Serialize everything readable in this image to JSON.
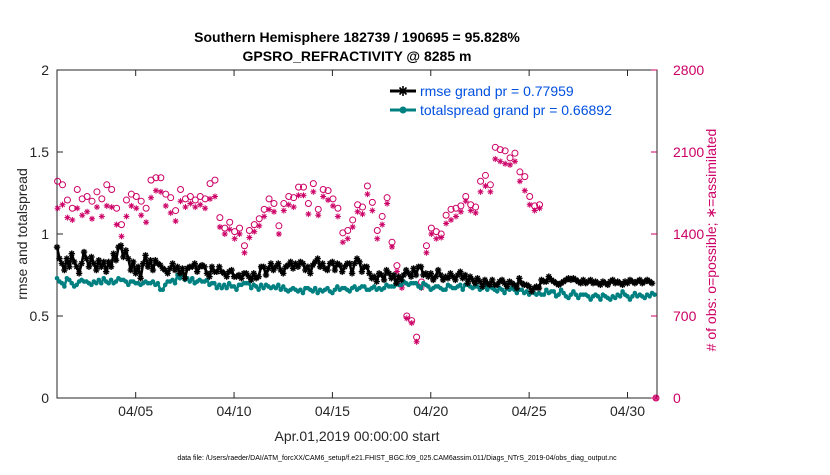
{
  "chart_data": {
    "type": "line",
    "title": [
      "Southern Hemisphere 182739 / 190695 = 95.828%",
      "GPSRO_REFRACTIVITY @ 8285 m"
    ],
    "xlabel": "Apr.01,2019 00:00:00 start",
    "ylabel_left": "rmse and totalspread",
    "ylabel_right": "# of obs: o=possible; ∗=assimilated",
    "footer": "data file: /Users/raeder/DAI/ATM_forcXX/CAM6_setup/f.e21.FHIST_BGC.f09_025.CAM6assim.011/Diags_NTrS_2019-04/obs_diag_output.nc",
    "xlim": [
      1.0,
      31.5
    ],
    "xticks": [
      5,
      10,
      15,
      20,
      25,
      30
    ],
    "xtick_labels": [
      "04/05",
      "04/10",
      "04/15",
      "04/20",
      "04/25",
      "04/30"
    ],
    "ylim_left": [
      0,
      2
    ],
    "yticks_left": [
      0,
      0.5,
      1,
      1.5,
      2
    ],
    "ytick_labels_left": [
      "0",
      "0.5",
      "1",
      "1.5",
      "2"
    ],
    "ylim_right": [
      0,
      2800
    ],
    "yticks_right": [
      0,
      700,
      1400,
      2100,
      2800
    ],
    "ytick_labels_right": [
      "0",
      "700",
      "1400",
      "2100",
      "2800"
    ],
    "colors": {
      "rmse": "#000000",
      "spread": "#008080",
      "obs": "#cc0066",
      "legend_text": "#0050e0"
    },
    "x_start": 1.0,
    "x_step": 0.125,
    "legend_position": "top-right",
    "series": [
      {
        "name": "rmse grand pr = 0.77959",
        "key": "rmse",
        "marker": "asterisk",
        "values": [
          0.92,
          0.85,
          0.82,
          0.78,
          0.85,
          0.8,
          0.88,
          0.83,
          0.8,
          0.76,
          0.82,
          0.89,
          0.85,
          0.8,
          0.86,
          0.82,
          0.78,
          0.84,
          0.8,
          0.83,
          0.77,
          0.83,
          0.8,
          0.88,
          0.84,
          0.92,
          0.93,
          0.86,
          0.9,
          0.85,
          0.78,
          0.83,
          0.76,
          0.8,
          0.73,
          0.82,
          0.87,
          0.8,
          0.84,
          0.78,
          0.84,
          0.82,
          0.81,
          0.79,
          0.78,
          0.76,
          0.79,
          0.82,
          0.78,
          0.8,
          0.76,
          0.79,
          0.73,
          0.79,
          0.8,
          0.8,
          0.82,
          0.77,
          0.8,
          0.81,
          0.8,
          0.76,
          0.74,
          0.8,
          0.77,
          0.77,
          0.8,
          0.77,
          0.76,
          0.74,
          0.77,
          0.78,
          0.74,
          0.74,
          0.75,
          0.73,
          0.76,
          0.76,
          0.74,
          0.72,
          0.76,
          0.73,
          0.74,
          0.8,
          0.8,
          0.75,
          0.79,
          0.82,
          0.78,
          0.8,
          0.82,
          0.78,
          0.76,
          0.8,
          0.81,
          0.83,
          0.79,
          0.82,
          0.8,
          0.83,
          0.82,
          0.78,
          0.8,
          0.76,
          0.81,
          0.83,
          0.85,
          0.8,
          0.82,
          0.79,
          0.78,
          0.82,
          0.83,
          0.78,
          0.82,
          0.81,
          0.77,
          0.8,
          0.82,
          0.82,
          0.76,
          0.82,
          0.85,
          0.83,
          0.77,
          0.8,
          0.8,
          0.76,
          0.73,
          0.74,
          0.71,
          0.76,
          0.75,
          0.72,
          0.78,
          0.76,
          0.73,
          0.75,
          0.7,
          0.74,
          0.72,
          0.75,
          0.78,
          0.76,
          0.74,
          0.79,
          0.75,
          0.8,
          0.8,
          0.75,
          0.76,
          0.74,
          0.76,
          0.72,
          0.74,
          0.78,
          0.75,
          0.72,
          0.74,
          0.73,
          0.76,
          0.74,
          0.72,
          0.75,
          0.77,
          0.73,
          0.75,
          0.7,
          0.74,
          0.72,
          0.7,
          0.73,
          0.71,
          0.68,
          0.72,
          0.7,
          0.69,
          0.72,
          0.69,
          0.69,
          0.71,
          0.72,
          0.7,
          0.68,
          0.71,
          0.7,
          0.69,
          0.67,
          0.73,
          0.7,
          0.69,
          0.69,
          0.68,
          0.65,
          0.67,
          0.68,
          0.67,
          0.72,
          0.71,
          0.71,
          0.74,
          0.72,
          0.71,
          0.7,
          0.69,
          0.7,
          0.71,
          0.72,
          0.73,
          0.72,
          0.73,
          0.72,
          0.71,
          0.7,
          0.72,
          0.7,
          0.71,
          0.72,
          0.7,
          0.71,
          0.7,
          0.69,
          0.71,
          0.7,
          0.69,
          0.71,
          0.72,
          0.7,
          0.71,
          0.7,
          0.69,
          0.71,
          0.7,
          0.72,
          0.71,
          0.7,
          0.71,
          0.72,
          0.7,
          0.71,
          0.72,
          0.71,
          0.7
        ]
      },
      {
        "name": "totalspread grand pr = 0.66892",
        "key": "spread",
        "marker": "dot",
        "values": [
          0.73,
          0.71,
          0.7,
          0.68,
          0.73,
          0.72,
          0.7,
          0.68,
          0.69,
          0.71,
          0.72,
          0.71,
          0.71,
          0.7,
          0.69,
          0.71,
          0.7,
          0.72,
          0.7,
          0.73,
          0.71,
          0.7,
          0.72,
          0.7,
          0.71,
          0.73,
          0.72,
          0.72,
          0.71,
          0.69,
          0.71,
          0.71,
          0.7,
          0.7,
          0.69,
          0.7,
          0.71,
          0.7,
          0.7,
          0.71,
          0.69,
          0.7,
          0.66,
          0.66,
          0.69,
          0.71,
          0.71,
          0.72,
          0.7,
          0.75,
          0.73,
          0.76,
          0.72,
          0.73,
          0.71,
          0.73,
          0.7,
          0.71,
          0.72,
          0.71,
          0.71,
          0.72,
          0.69,
          0.7,
          0.7,
          0.67,
          0.69,
          0.67,
          0.69,
          0.67,
          0.7,
          0.68,
          0.68,
          0.66,
          0.69,
          0.69,
          0.7,
          0.7,
          0.7,
          0.67,
          0.69,
          0.68,
          0.66,
          0.69,
          0.67,
          0.69,
          0.68,
          0.67,
          0.68,
          0.67,
          0.69,
          0.66,
          0.68,
          0.66,
          0.65,
          0.66,
          0.67,
          0.66,
          0.65,
          0.66,
          0.64,
          0.67,
          0.67,
          0.66,
          0.65,
          0.67,
          0.64,
          0.66,
          0.65,
          0.66,
          0.67,
          0.65,
          0.64,
          0.66,
          0.68,
          0.66,
          0.67,
          0.67,
          0.66,
          0.65,
          0.67,
          0.68,
          0.66,
          0.67,
          0.68,
          0.68,
          0.66,
          0.66,
          0.67,
          0.68,
          0.66,
          0.67,
          0.66,
          0.67,
          0.69,
          0.68,
          0.68,
          0.68,
          0.71,
          0.69,
          0.69,
          0.71,
          0.7,
          0.69,
          0.7,
          0.7,
          0.7,
          0.68,
          0.67,
          0.7,
          0.69,
          0.68,
          0.66,
          0.67,
          0.68,
          0.68,
          0.67,
          0.66,
          0.66,
          0.69,
          0.68,
          0.67,
          0.67,
          0.68,
          0.69,
          0.66,
          0.69,
          0.69,
          0.68,
          0.67,
          0.68,
          0.68,
          0.66,
          0.67,
          0.69,
          0.66,
          0.68,
          0.67,
          0.66,
          0.65,
          0.67,
          0.66,
          0.64,
          0.67,
          0.66,
          0.67,
          0.66,
          0.64,
          0.66,
          0.66,
          0.64,
          0.65,
          0.63,
          0.65,
          0.64,
          0.63,
          0.64,
          0.63,
          0.63,
          0.66,
          0.64,
          0.65,
          0.65,
          0.62,
          0.63,
          0.66,
          0.64,
          0.62,
          0.61,
          0.63,
          0.65,
          0.63,
          0.61,
          0.63,
          0.63,
          0.63,
          0.62,
          0.6,
          0.62,
          0.63,
          0.62,
          0.6,
          0.63,
          0.62,
          0.61,
          0.6,
          0.62,
          0.61,
          0.63,
          0.62,
          0.65,
          0.63,
          0.62,
          0.6,
          0.62,
          0.64,
          0.62,
          0.63,
          0.62,
          0.61,
          0.63,
          0.62,
          0.64,
          0.63
        ]
      },
      {
        "name": "possible",
        "key": "possible",
        "marker": "circle",
        "x_step_days": 0.25,
        "values": [
          1850,
          1820,
          1690,
          1620,
          1780,
          1700,
          1720,
          1680,
          1760,
          1700,
          1820,
          1780,
          1620,
          1480,
          1690,
          1740,
          1720,
          1680,
          1620,
          1860,
          1880,
          1880,
          1740,
          1710,
          1600,
          1780,
          1700,
          1720,
          1690,
          1720,
          1700,
          1830,
          1860,
          1540,
          1450,
          1500,
          1420,
          1450,
          1300,
          1430,
          1480,
          1530,
          1610,
          1700,
          1660,
          1470,
          1660,
          1720,
          1710,
          1800,
          1800,
          1660,
          1830,
          1610,
          1780,
          1770,
          1700,
          1620,
          1410,
          1430,
          1520,
          1650,
          1630,
          1810,
          1670,
          1430,
          1550,
          1710,
          1330,
          1130,
          980,
          700,
          660,
          520,
          990,
          1300,
          1450,
          1420,
          1400,
          1560,
          1610,
          1620,
          1640,
          1720,
          1650,
          1630,
          1850,
          1900,
          1820,
          2140,
          2120,
          2110,
          2050,
          2090,
          1930,
          1890,
          1720,
          1640,
          1650
        ]
      },
      {
        "name": "assimilated",
        "key": "assimilated",
        "marker": "asterisk",
        "x_step_days": 0.25,
        "values": [
          1620,
          1650,
          1540,
          1520,
          1620,
          1560,
          1590,
          1530,
          1630,
          1550,
          1640,
          1630,
          1480,
          1380,
          1550,
          1640,
          1620,
          1560,
          1500,
          1710,
          1770,
          1760,
          1640,
          1580,
          1510,
          1680,
          1630,
          1660,
          1630,
          1650,
          1620,
          1700,
          1720,
          1460,
          1400,
          1440,
          1360,
          1400,
          1240,
          1370,
          1420,
          1470,
          1550,
          1610,
          1590,
          1400,
          1600,
          1650,
          1630,
          1730,
          1730,
          1570,
          1760,
          1560,
          1720,
          1690,
          1640,
          1550,
          1330,
          1360,
          1460,
          1590,
          1570,
          1740,
          1600,
          1360,
          1480,
          1660,
          1290,
          1080,
          940,
          680,
          640,
          480,
          940,
          1240,
          1400,
          1360,
          1370,
          1490,
          1520,
          1550,
          1590,
          1680,
          1600,
          1580,
          1760,
          1810,
          1760,
          2040,
          2020,
          2000,
          1990,
          2020,
          1850,
          1770,
          1650,
          1600,
          1620
        ]
      }
    ]
  }
}
